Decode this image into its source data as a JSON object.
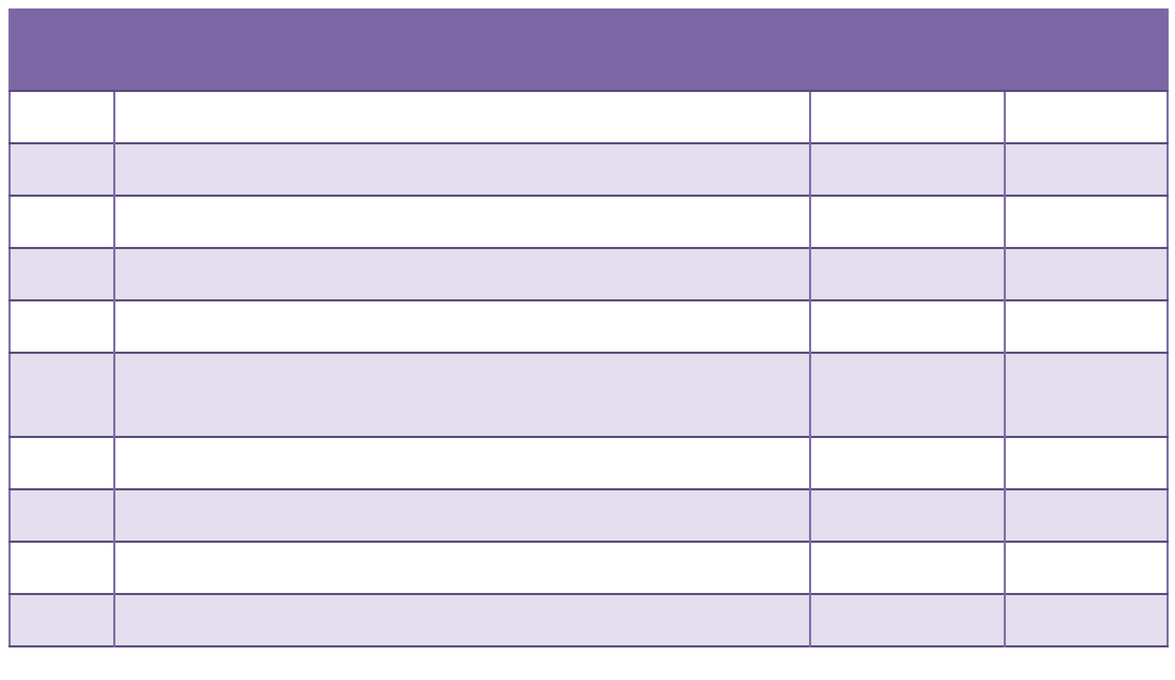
{
  "page": {
    "background": "#ffffff"
  },
  "table": {
    "header": {
      "label": ""
    },
    "rows": [
      {
        "cells": [
          "",
          "",
          "",
          ""
        ]
      },
      {
        "cells": [
          "",
          "",
          "",
          ""
        ]
      },
      {
        "cells": [
          "",
          "",
          "",
          ""
        ]
      },
      {
        "cells": [
          "",
          "",
          "",
          ""
        ]
      },
      {
        "cells": [
          "",
          "",
          "",
          ""
        ]
      },
      {
        "cells": [
          "",
          "",
          "",
          ""
        ]
      },
      {
        "cells": [
          "",
          "",
          "",
          ""
        ]
      },
      {
        "cells": [
          "",
          "",
          "",
          ""
        ]
      },
      {
        "cells": [
          "",
          "",
          "",
          ""
        ]
      },
      {
        "cells": [
          "",
          "",
          "",
          ""
        ]
      }
    ],
    "colors": {
      "header_fill": "#7d66a4",
      "band_fill": "#e4dfee",
      "row_fill": "#ffffff",
      "row_border": "#5b4a7a",
      "column_border": "#7e6ba6"
    }
  }
}
